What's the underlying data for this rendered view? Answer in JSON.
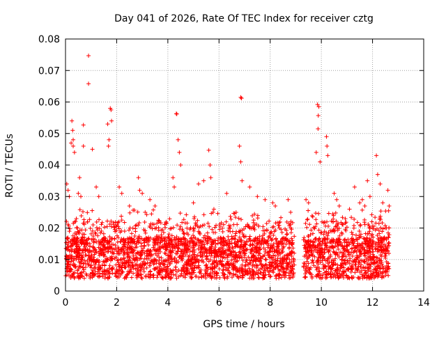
{
  "chart_data": {
    "type": "scatter",
    "title": "Day 041 of 2026, Rate Of TEC Index for receiver cztg",
    "xlabel": "GPS time / hours",
    "ylabel": "ROTI / TECUs",
    "xlim": [
      0,
      14
    ],
    "ylim": [
      0,
      0.08
    ],
    "x_ticks": [
      "0",
      "2",
      "4",
      "6",
      "8",
      "10",
      "12",
      "14"
    ],
    "y_ticks": [
      "0",
      "0.01",
      "0.02",
      "0.03",
      "0.04",
      "0.05",
      "0.06",
      "0.07",
      "0.08"
    ],
    "grid": true,
    "marker": "plus",
    "marker_color": "#ff0000",
    "series": [
      {
        "name": "ROTI",
        "x": [
          0.9,
          0.9,
          6.85,
          6.88,
          9.85,
          9.9,
          9.88,
          9.87,
          4.33,
          4.35,
          1.75,
          1.78,
          1.8,
          1.65,
          1.7,
          1.68,
          0.25,
          0.28,
          0.3,
          0.22,
          0.3,
          0.35,
          0.7,
          0.7,
          6.8,
          6.85,
          6.9,
          10.2,
          10.22,
          10.25,
          9.8,
          9.95,
          4.4,
          4.45,
          4.5,
          4.2,
          4.25,
          12.15,
          12.2,
          12.3,
          12.6,
          12.65,
          5.6,
          5.65,
          5.68,
          5.2,
          5.4,
          3.0,
          2.85,
          2.9,
          2.1,
          2.2,
          1.05,
          1.2,
          1.3,
          0.55,
          0.6,
          0.05,
          0.1,
          0.15,
          7.2,
          7.5,
          7.8,
          8.1,
          8.2,
          9.4,
          9.5,
          10.5,
          10.6,
          10.7,
          11.1,
          11.3,
          11.5,
          11.8,
          11.9,
          12.4,
          0.5,
          2.5,
          3.3,
          3.5,
          5.0,
          5.8,
          6.3,
          8.7,
          8.8,
          11.6,
          11.7
        ],
        "y": [
          0.0747,
          0.0658,
          0.0615,
          0.0612,
          0.0592,
          0.0585,
          0.0557,
          0.0515,
          0.0563,
          0.0562,
          0.058,
          0.0575,
          0.054,
          0.053,
          0.048,
          0.046,
          0.054,
          0.051,
          0.048,
          0.047,
          0.046,
          0.044,
          0.0527,
          0.046,
          0.046,
          0.041,
          0.035,
          0.049,
          0.046,
          0.043,
          0.044,
          0.041,
          0.048,
          0.044,
          0.04,
          0.036,
          0.033,
          0.043,
          0.037,
          0.034,
          0.032,
          0.027,
          0.0447,
          0.04,
          0.036,
          0.034,
          0.035,
          0.031,
          0.036,
          0.032,
          0.033,
          0.031,
          0.045,
          0.033,
          0.03,
          0.036,
          0.03,
          0.034,
          0.032,
          0.03,
          0.033,
          0.03,
          0.029,
          0.028,
          0.027,
          0.029,
          0.028,
          0.031,
          0.029,
          0.027,
          0.026,
          0.033,
          0.028,
          0.035,
          0.03,
          0.028,
          0.031,
          0.027,
          0.029,
          0.027,
          0.028,
          0.026,
          0.031,
          0.029,
          0.025,
          0.029,
          0.027
        ]
      }
    ],
    "data_gaps_hours": [
      [
        8.95,
        9.3
      ]
    ]
  }
}
